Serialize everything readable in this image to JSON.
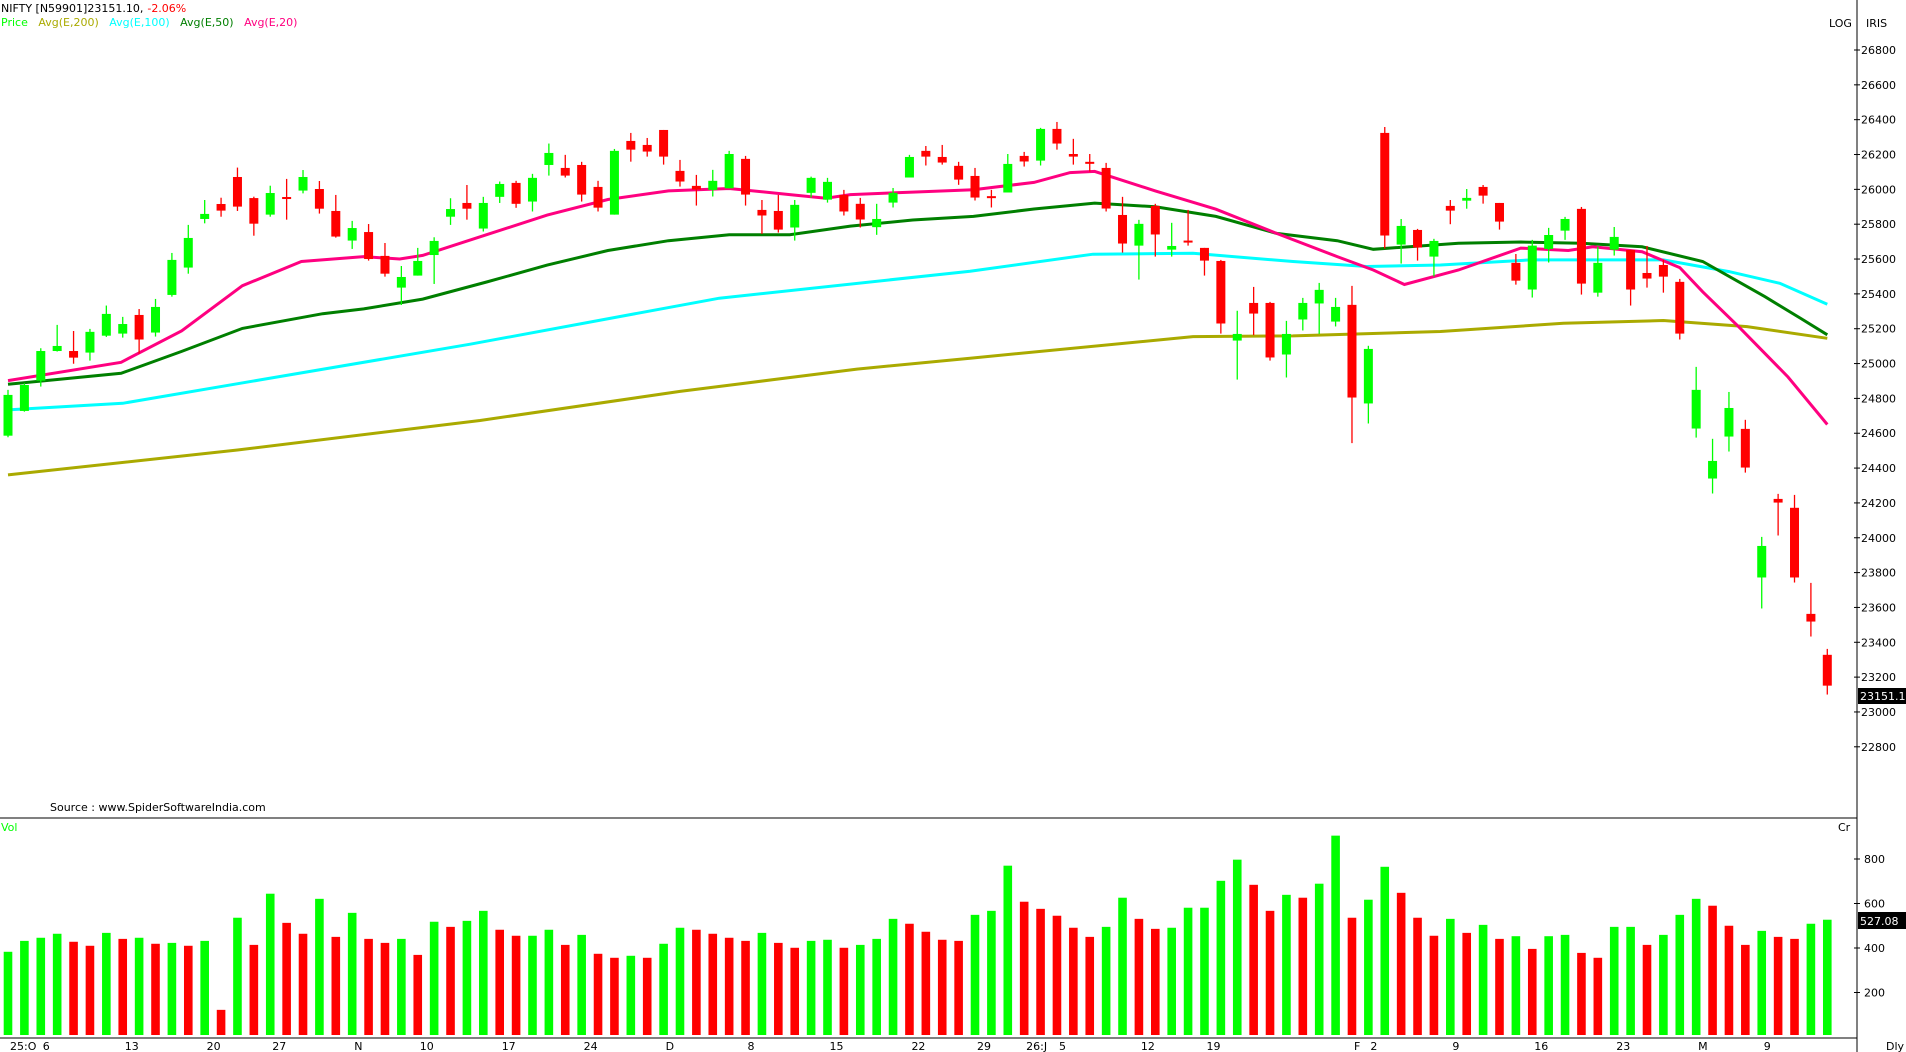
{
  "header": {
    "symbol": "NIFTY [N59901]23151.10,",
    "change": "-2.06%",
    "legend": [
      {
        "label": "Price",
        "color": "#00ff00"
      },
      {
        "label": "Avg(E,200)",
        "color": "#aaaa00"
      },
      {
        "label": "Avg(E,100)",
        "color": "#00ffff"
      },
      {
        "label": "Avg(E,50)",
        "color": "#007f00"
      },
      {
        "label": "Avg(E,20)",
        "color": "#ff0080"
      }
    ],
    "log_button": "LOG",
    "iris_button": "IRIS"
  },
  "source": "Source : www.SpiderSoftwareIndia.com",
  "volume_pane": {
    "title": "Vol",
    "unit": "Cr",
    "last_label": "527.08"
  },
  "timeframe": "Dly",
  "colors": {
    "up": "#00ff00",
    "down": "#ff0000",
    "ema200": "#aaaa00",
    "ema100": "#00ffff",
    "ema50": "#007f00",
    "ema20": "#ff0080"
  },
  "chart_data": {
    "type": "candlestick",
    "price_axis": {
      "range": [
        22700,
        26950
      ],
      "ticks": [
        22800,
        23000,
        23200,
        23400,
        23600,
        23800,
        24000,
        24200,
        24400,
        24600,
        24800,
        25000,
        25200,
        25400,
        25600,
        25800,
        26000,
        26200,
        26400,
        26600,
        26800
      ],
      "last_label": "23151.1"
    },
    "volume_axis": {
      "range": [
        0,
        950
      ],
      "ticks": [
        200,
        400,
        600,
        800
      ]
    },
    "x_labels": [
      {
        "label": "25:O",
        "bar": 1
      },
      {
        "label": "6",
        "bar": 3
      },
      {
        "label": "13",
        "bar": 8
      },
      {
        "label": "20",
        "bar": 13
      },
      {
        "label": "27",
        "bar": 17
      },
      {
        "label": "N",
        "bar": 22
      },
      {
        "label": "10",
        "bar": 26
      },
      {
        "label": "17",
        "bar": 31
      },
      {
        "label": "24",
        "bar": 36
      },
      {
        "label": "D",
        "bar": 41
      },
      {
        "label": "8",
        "bar": 46
      },
      {
        "label": "15",
        "bar": 51
      },
      {
        "label": "22",
        "bar": 56
      },
      {
        "label": "29",
        "bar": 60
      },
      {
        "label": "26:J",
        "bar": 63
      },
      {
        "label": "5",
        "bar": 65
      },
      {
        "label": "12",
        "bar": 70
      },
      {
        "label": "19",
        "bar": 74
      },
      {
        "label": "F",
        "bar": 83
      },
      {
        "label": "2",
        "bar": 84
      },
      {
        "label": "9",
        "bar": 89
      },
      {
        "label": "16",
        "bar": 94
      },
      {
        "label": "23",
        "bar": 99
      },
      {
        "label": "M",
        "bar": 104
      },
      {
        "label": "9",
        "bar": 108
      }
    ],
    "ohlc": [
      [
        24586,
        24849,
        24577,
        24820
      ],
      [
        24728,
        24887,
        24724,
        24877
      ],
      [
        24902,
        25088,
        24868,
        25072
      ],
      [
        25072,
        25222,
        25069,
        25101
      ],
      [
        25072,
        25187,
        24999,
        25034
      ],
      [
        25063,
        25199,
        25017,
        25182
      ],
      [
        25160,
        25333,
        25153,
        25285
      ],
      [
        25172,
        25268,
        25149,
        25227
      ],
      [
        25279,
        25313,
        25057,
        25138
      ],
      [
        25178,
        25371,
        25155,
        25325
      ],
      [
        25394,
        25635,
        25384,
        25595
      ],
      [
        25551,
        25796,
        25516,
        25721
      ],
      [
        25830,
        25939,
        25805,
        25859
      ],
      [
        25916,
        25952,
        25843,
        25878
      ],
      [
        26071,
        26125,
        25876,
        25901
      ],
      [
        25950,
        25958,
        25734,
        25803
      ],
      [
        25855,
        26021,
        25843,
        25979
      ],
      [
        25956,
        26060,
        25826,
        25947
      ],
      [
        25993,
        26111,
        25977,
        26071
      ],
      [
        26002,
        26048,
        25861,
        25889
      ],
      [
        25876,
        25968,
        25723,
        25729
      ],
      [
        25706,
        25819,
        25658,
        25778
      ],
      [
        25755,
        25801,
        25591,
        25600
      ],
      [
        25618,
        25692,
        25499,
        25516
      ],
      [
        25436,
        25560,
        25336,
        25497
      ],
      [
        25505,
        25664,
        25505,
        25589
      ],
      [
        25623,
        25725,
        25457,
        25704
      ],
      [
        25843,
        25949,
        25796,
        25887
      ],
      [
        25922,
        26025,
        25826,
        25889
      ],
      [
        25775,
        25957,
        25758,
        25922
      ],
      [
        25957,
        26045,
        25922,
        26031
      ],
      [
        26037,
        26049,
        25894,
        25917
      ],
      [
        25930,
        26089,
        25873,
        26066
      ],
      [
        26140,
        26263,
        26079,
        26209
      ],
      [
        26123,
        26198,
        26068,
        26079
      ],
      [
        26140,
        26158,
        25930,
        25970
      ],
      [
        26014,
        26049,
        25873,
        25895
      ],
      [
        25855,
        26232,
        25855,
        26221
      ],
      [
        26278,
        26324,
        26159,
        26228
      ],
      [
        26255,
        26295,
        26188,
        26217
      ],
      [
        26341,
        26341,
        26142,
        26188
      ],
      [
        26106,
        26169,
        26016,
        26045
      ],
      [
        26020,
        26083,
        25907,
        25999
      ],
      [
        25997,
        26112,
        25959,
        26049
      ],
      [
        26006,
        26221,
        26006,
        26203
      ],
      [
        26175,
        26192,
        25907,
        25970
      ],
      [
        25882,
        25939,
        25744,
        25850
      ],
      [
        25876,
        25968,
        25752,
        25769
      ],
      [
        25781,
        25939,
        25706,
        25911
      ],
      [
        25980,
        26073,
        25953,
        26066
      ],
      [
        25941,
        26066,
        25924,
        26043
      ],
      [
        25968,
        25997,
        25850,
        25873
      ],
      [
        25917,
        25951,
        25781,
        25827
      ],
      [
        25783,
        25917,
        25739,
        25830
      ],
      [
        25924,
        26008,
        25896,
        25980
      ],
      [
        26068,
        26198,
        26068,
        26186
      ],
      [
        26221,
        26249,
        26137,
        26188
      ],
      [
        26186,
        26255,
        26142,
        26154
      ],
      [
        26135,
        26158,
        26026,
        26056
      ],
      [
        26077,
        26123,
        25936,
        25953
      ],
      [
        25961,
        25997,
        25896,
        25957
      ],
      [
        25982,
        26203,
        25982,
        26146
      ],
      [
        26192,
        26215,
        26131,
        26160
      ],
      [
        26165,
        26353,
        26137,
        26347
      ],
      [
        26347,
        26387,
        26228,
        26263
      ],
      [
        26203,
        26290,
        26142,
        26188
      ],
      [
        26158,
        26203,
        26102,
        26152
      ],
      [
        26123,
        26152,
        25873,
        25890
      ],
      [
        25853,
        25957,
        25637,
        25689
      ],
      [
        25677,
        25825,
        25482,
        25802
      ],
      [
        25905,
        25917,
        25614,
        25741
      ],
      [
        25654,
        25808,
        25614,
        25675
      ],
      [
        25706,
        25882,
        25677,
        25698
      ],
      [
        25664,
        25664,
        25505,
        25591
      ],
      [
        25589,
        25595,
        25172,
        25230
      ],
      [
        25132,
        25303,
        24908,
        25170
      ],
      [
        25348,
        25440,
        25163,
        25287
      ],
      [
        25348,
        25354,
        25017,
        25035
      ],
      [
        25052,
        25245,
        24920,
        25170
      ],
      [
        25253,
        25377,
        25190,
        25348
      ],
      [
        25345,
        25463,
        25170,
        25423
      ],
      [
        25241,
        25377,
        25213,
        25325
      ],
      [
        25337,
        25446,
        24543,
        24805
      ],
      [
        24771,
        25102,
        24656,
        25084
      ],
      [
        26324,
        26358,
        25660,
        25735
      ],
      [
        25683,
        25830,
        25574,
        25790
      ],
      [
        25767,
        25773,
        25591,
        25666
      ],
      [
        25614,
        25716,
        25500,
        25704
      ],
      [
        25905,
        25939,
        25800,
        25878
      ],
      [
        25935,
        26002,
        25889,
        25951
      ],
      [
        26014,
        26025,
        25918,
        25964
      ],
      [
        25922,
        25922,
        25769,
        25815
      ],
      [
        25578,
        25629,
        25453,
        25476
      ],
      [
        25425,
        25710,
        25379,
        25677
      ],
      [
        25658,
        25779,
        25580,
        25738
      ],
      [
        25763,
        25842,
        25710,
        25830
      ],
      [
        25888,
        25899,
        25396,
        25459
      ],
      [
        25407,
        25671,
        25384,
        25578
      ],
      [
        25654,
        25784,
        25620,
        25727
      ],
      [
        25652,
        25652,
        25333,
        25425
      ],
      [
        25520,
        25675,
        25436,
        25488
      ],
      [
        25566,
        25595,
        25407,
        25499
      ],
      [
        25469,
        25486,
        25138,
        25172
      ],
      [
        24627,
        24981,
        24575,
        24849
      ],
      [
        24340,
        24568,
        24254,
        24441
      ],
      [
        24581,
        24837,
        24495,
        24745
      ],
      [
        24625,
        24677,
        24374,
        24403
      ],
      [
        23772,
        24005,
        23594,
        23953
      ],
      [
        24223,
        24252,
        24013,
        24202
      ],
      [
        24172,
        24246,
        23743,
        23772
      ],
      [
        23563,
        23741,
        23433,
        23519
      ],
      [
        23328,
        23362,
        23100,
        23151.1
      ]
    ],
    "volume": [
      383,
      432,
      446,
      464,
      428,
      410,
      468,
      441,
      446,
      419,
      423,
      410,
      432,
      122,
      536,
      414,
      644,
      513,
      464,
      621,
      450,
      558,
      441,
      423,
      441,
      369,
      518,
      495,
      522,
      567,
      482,
      455,
      455,
      482,
      414,
      459,
      374,
      356,
      365,
      356,
      419,
      491,
      482,
      464,
      446,
      432,
      468,
      423,
      401,
      432,
      437,
      401,
      414,
      441,
      531,
      509,
      473,
      437,
      432,
      549,
      567,
      770,
      608,
      576,
      545,
      491,
      450,
      495,
      626,
      531,
      486,
      491,
      581,
      581,
      702,
      797,
      684,
      567,
      639,
      626,
      689,
      905,
      536,
      617,
      765,
      648,
      536,
      455,
      531,
      468,
      504,
      441,
      453,
      396,
      453,
      459,
      378,
      356,
      495,
      495,
      414,
      459,
      549,
      621,
      590,
      500,
      414,
      477,
      450,
      441,
      509,
      527.08
    ],
    "series": [
      {
        "name": "Avg(E,200)",
        "points": [
          [
            1,
            24361
          ],
          [
            15,
            24504
          ],
          [
            29.8,
            24673
          ],
          [
            42,
            24840
          ],
          [
            52.8,
            24968
          ],
          [
            59.7,
            25031
          ],
          [
            73.3,
            25155
          ],
          [
            79.4,
            25159
          ],
          [
            88.4,
            25184
          ],
          [
            95.9,
            25231
          ],
          [
            102,
            25247
          ],
          [
            107.1,
            25212
          ],
          [
            112,
            25145
          ]
        ]
      },
      {
        "name": "Avg(E,100)",
        "points": [
          [
            1,
            24734
          ],
          [
            8,
            24772
          ],
          [
            15.2,
            24887
          ],
          [
            29.2,
            25111
          ],
          [
            44.4,
            25375
          ],
          [
            59.7,
            25530
          ],
          [
            67.2,
            25628
          ],
          [
            73.3,
            25633
          ],
          [
            79.4,
            25586
          ],
          [
            83.9,
            25557
          ],
          [
            88.4,
            25566
          ],
          [
            93.9,
            25595
          ],
          [
            102,
            25595
          ],
          [
            106,
            25528
          ],
          [
            109.1,
            25461
          ],
          [
            112,
            25340
          ]
        ]
      },
      {
        "name": "Avg(E,50)",
        "points": [
          [
            1,
            24881
          ],
          [
            7.9,
            24944
          ],
          [
            11.6,
            25070
          ],
          [
            15.3,
            25202
          ],
          [
            20.2,
            25286
          ],
          [
            22.7,
            25314
          ],
          [
            26.3,
            25370
          ],
          [
            30.2,
            25468
          ],
          [
            33.9,
            25565
          ],
          [
            37.6,
            25649
          ],
          [
            41.3,
            25705
          ],
          [
            45,
            25740
          ],
          [
            48.7,
            25740
          ],
          [
            52.4,
            25789
          ],
          [
            56.2,
            25824
          ],
          [
            59.9,
            25845
          ],
          [
            63.6,
            25887
          ],
          [
            67.3,
            25921
          ],
          [
            71,
            25900
          ],
          [
            74.7,
            25845
          ],
          [
            78.4,
            25747
          ],
          [
            82.1,
            25705
          ],
          [
            84.3,
            25656
          ],
          [
            89.5,
            25691
          ],
          [
            93.3,
            25698
          ],
          [
            97,
            25691
          ],
          [
            100.7,
            25670
          ],
          [
            104.4,
            25586
          ],
          [
            108.2,
            25384
          ],
          [
            110.4,
            25258
          ],
          [
            112,
            25165
          ]
        ]
      },
      {
        "name": "Avg(E,20)",
        "points": [
          [
            1,
            24902
          ],
          [
            7.9,
            25007
          ],
          [
            11.6,
            25188
          ],
          [
            15.3,
            25447
          ],
          [
            18.9,
            25586
          ],
          [
            22.7,
            25614
          ],
          [
            24.9,
            25600
          ],
          [
            26.3,
            25621
          ],
          [
            30.2,
            25740
          ],
          [
            33.9,
            25852
          ],
          [
            37.6,
            25942
          ],
          [
            41.3,
            25991
          ],
          [
            45,
            26005
          ],
          [
            48.7,
            25970
          ],
          [
            50.9,
            25949
          ],
          [
            52.4,
            25970
          ],
          [
            56.2,
            25984
          ],
          [
            59.9,
            25998
          ],
          [
            63.6,
            26040
          ],
          [
            65.8,
            26096
          ],
          [
            67.3,
            26103
          ],
          [
            71,
            25991
          ],
          [
            74.7,
            25886
          ],
          [
            78.4,
            25747
          ],
          [
            82.1,
            25614
          ],
          [
            84.3,
            25537
          ],
          [
            86.2,
            25454
          ],
          [
            89.5,
            25537
          ],
          [
            93.3,
            25663
          ],
          [
            96.2,
            25649
          ],
          [
            97.7,
            25670
          ],
          [
            100.7,
            25642
          ],
          [
            103,
            25551
          ],
          [
            104.4,
            25412
          ],
          [
            106.7,
            25202
          ],
          [
            109.6,
            24923
          ],
          [
            112,
            24650
          ]
        ]
      }
    ]
  }
}
